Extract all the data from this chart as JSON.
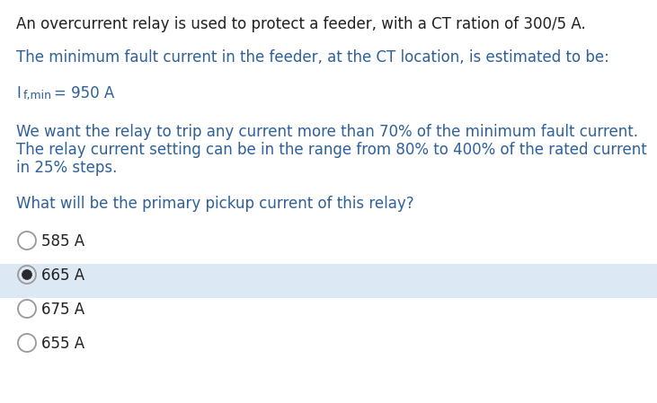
{
  "background_color": "#ffffff",
  "text_color_black": "#231f20",
  "text_color_blue": "#2e6099",
  "highlight_color": "#dce9f5",
  "line1": "An overcurrent relay is used to protect a feeder, with a CT ration of 300/5 A.",
  "line2": "The minimum fault current in the feeder, at the CT location, is estimated to be:",
  "line4a": "We want the relay to trip any current more than 70% of the minimum fault current.",
  "line4b": "The relay current setting can be in the range from 80% to 400% of the rated current",
  "line4c": "in 25% steps.",
  "line5": "What will be the primary pickup current of this relay?",
  "options": [
    "585 A",
    "665 A",
    "675 A",
    "655 A"
  ],
  "selected_index": 1,
  "font_size_main": 12.0,
  "font_size_sub": 9.0
}
